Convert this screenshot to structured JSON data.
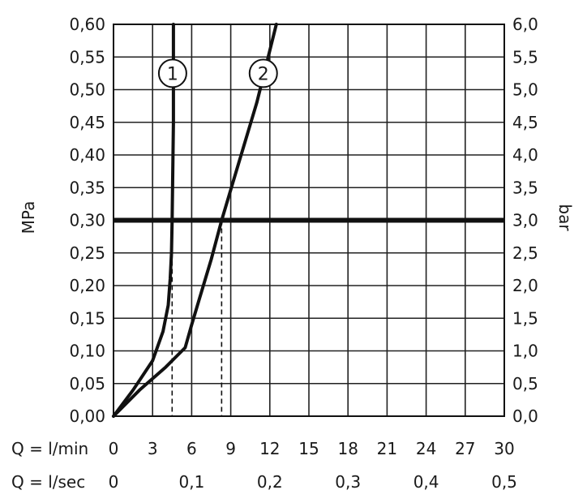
{
  "chart_data": {
    "type": "line",
    "title": "",
    "y_left": {
      "label": "MPa",
      "ylim": [
        0,
        0.6
      ],
      "ticks": [
        0,
        0.05,
        0.1,
        0.15,
        0.2,
        0.25,
        0.3,
        0.35,
        0.4,
        0.45,
        0.5,
        0.55,
        0.6
      ],
      "tick_labels": [
        "0,00",
        "0,05",
        "0,10",
        "0,15",
        "0,20",
        "0,25",
        "0,30",
        "0,35",
        "0,40",
        "0,45",
        "0,50",
        "0,55",
        "0,60"
      ]
    },
    "y_right": {
      "label": "bar",
      "ylim": [
        0,
        6.0
      ],
      "tick_labels": [
        "0,0",
        "0,5",
        "1,0",
        "1,5",
        "2,0",
        "2,5",
        "3,0",
        "3,5",
        "4,0",
        "4,5",
        "5,0",
        "5,5",
        "6,0"
      ]
    },
    "x_primary": {
      "label": "Q = l/min",
      "xlim": [
        0,
        30
      ],
      "ticks": [
        0,
        3,
        6,
        9,
        12,
        15,
        18,
        21,
        24,
        27,
        30
      ],
      "tick_labels": [
        "0",
        "3",
        "6",
        "9",
        "12",
        "15",
        "18",
        "21",
        "24",
        "27",
        "30"
      ]
    },
    "x_secondary": {
      "label": "Q = l/sec",
      "tick_values_lmin": [
        0,
        6,
        12,
        18,
        24,
        30
      ],
      "tick_labels": [
        "0",
        "0,1",
        "0,2",
        "0,3",
        "0,4",
        "0,5"
      ]
    },
    "grid": true,
    "reference_line": {
      "y": 0.3
    },
    "series": [
      {
        "name": "1",
        "x": [
          0,
          1.5,
          3.0,
          3.8,
          4.2,
          4.35,
          4.45,
          4.5,
          4.6,
          4.6
        ],
        "y": [
          0,
          0.04,
          0.085,
          0.13,
          0.17,
          0.21,
          0.25,
          0.3,
          0.45,
          0.6
        ]
      },
      {
        "name": "2",
        "x": [
          0,
          2.0,
          4.0,
          5.5,
          6.0,
          6.6,
          7.5,
          8.3,
          9.5,
          11.0,
          12.0,
          12.5
        ],
        "y": [
          0,
          0.04,
          0.075,
          0.105,
          0.14,
          0.18,
          0.24,
          0.3,
          0.38,
          0.48,
          0.56,
          0.6
        ]
      }
    ],
    "dashed_markers": [
      {
        "series": "1",
        "x": 4.5,
        "y": 0.3
      },
      {
        "series": "2",
        "x": 8.3,
        "y": 0.3
      }
    ],
    "series_labels": [
      "1",
      "2"
    ]
  }
}
